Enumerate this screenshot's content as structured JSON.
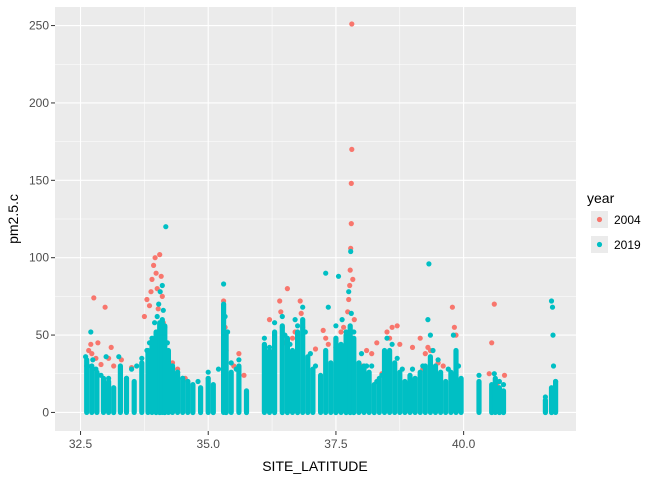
{
  "chart_data": {
    "type": "scatter",
    "title": "",
    "xlabel": "SITE_LATITUDE",
    "ylabel": "pm2.5.c",
    "xlim": [
      32.0,
      42.2
    ],
    "ylim": [
      -12,
      262
    ],
    "x_ticks": [
      32.5,
      35.0,
      37.5,
      40.0
    ],
    "x_tick_labels": [
      "32.5",
      "35.0",
      "37.5",
      "40.0"
    ],
    "y_ticks": [
      0,
      50,
      100,
      150,
      200,
      250
    ],
    "y_tick_labels": [
      "0",
      "50",
      "100",
      "150",
      "200",
      "250"
    ],
    "grid": true,
    "panel_background": "#ebebeb",
    "legend": {
      "title": "year",
      "position": "right"
    },
    "series": [
      {
        "name": "2004",
        "color": "#F8766D",
        "points": [
          [
            32.62,
            30
          ],
          [
            32.66,
            40
          ],
          [
            32.7,
            44
          ],
          [
            32.72,
            38
          ],
          [
            32.76,
            74
          ],
          [
            32.8,
            35
          ],
          [
            32.84,
            45
          ],
          [
            32.9,
            31
          ],
          [
            32.98,
            68
          ],
          [
            33.05,
            35
          ],
          [
            33.1,
            42
          ],
          [
            33.15,
            30
          ],
          [
            33.3,
            34
          ],
          [
            33.5,
            29
          ],
          [
            33.75,
            62
          ],
          [
            33.8,
            73
          ],
          [
            33.85,
            69
          ],
          [
            33.88,
            78
          ],
          [
            33.9,
            86
          ],
          [
            33.93,
            95
          ],
          [
            33.96,
            100
          ],
          [
            33.98,
            90
          ],
          [
            34.0,
            80
          ],
          [
            34.02,
            67
          ],
          [
            34.05,
            102
          ],
          [
            34.08,
            88
          ],
          [
            34.1,
            75
          ],
          [
            34.12,
            58
          ],
          [
            34.15,
            45
          ],
          [
            34.2,
            39
          ],
          [
            34.3,
            32
          ],
          [
            34.4,
            28
          ],
          [
            34.55,
            22
          ],
          [
            35.0,
            22
          ],
          [
            35.3,
            72
          ],
          [
            35.33,
            55
          ],
          [
            35.35,
            40
          ],
          [
            35.5,
            30
          ],
          [
            35.6,
            38
          ],
          [
            35.7,
            24
          ],
          [
            36.2,
            60
          ],
          [
            36.4,
            72
          ],
          [
            36.42,
            65
          ],
          [
            36.45,
            55
          ],
          [
            36.5,
            45
          ],
          [
            36.55,
            80
          ],
          [
            36.65,
            48
          ],
          [
            36.7,
            52
          ],
          [
            36.8,
            72
          ],
          [
            36.82,
            64
          ],
          [
            36.85,
            55
          ],
          [
            37.1,
            41
          ],
          [
            37.25,
            53
          ],
          [
            37.3,
            48
          ],
          [
            37.35,
            44
          ],
          [
            37.5,
            42
          ],
          [
            37.6,
            52
          ],
          [
            37.65,
            55
          ],
          [
            37.7,
            48
          ],
          [
            37.73,
            65
          ],
          [
            37.75,
            73
          ],
          [
            37.77,
            82
          ],
          [
            37.78,
            92
          ],
          [
            37.79,
            106
          ],
          [
            37.8,
            122
          ],
          [
            37.8,
            148
          ],
          [
            37.81,
            170
          ],
          [
            37.81,
            251
          ],
          [
            37.83,
            86
          ],
          [
            37.86,
            60
          ],
          [
            38.0,
            30
          ],
          [
            38.1,
            40
          ],
          [
            38.2,
            38
          ],
          [
            38.3,
            45
          ],
          [
            38.4,
            25
          ],
          [
            38.5,
            52
          ],
          [
            38.55,
            48
          ],
          [
            38.6,
            55
          ],
          [
            38.7,
            56
          ],
          [
            38.75,
            44
          ],
          [
            39.0,
            42
          ],
          [
            39.15,
            48
          ],
          [
            39.2,
            28
          ],
          [
            39.25,
            38
          ],
          [
            39.3,
            42
          ],
          [
            39.35,
            40
          ],
          [
            39.5,
            32
          ],
          [
            39.6,
            30
          ],
          [
            39.78,
            68
          ],
          [
            39.82,
            55
          ],
          [
            39.85,
            50
          ],
          [
            40.5,
            25
          ],
          [
            40.55,
            45
          ],
          [
            40.6,
            70
          ],
          [
            40.65,
            18
          ],
          [
            40.7,
            10
          ],
          [
            40.8,
            24
          ]
        ]
      },
      {
        "name": "2019",
        "color": "#00BFC4",
        "points": [
          [
            32.6,
            36
          ],
          [
            32.64,
            30
          ],
          [
            32.7,
            52
          ],
          [
            32.74,
            34
          ],
          [
            32.8,
            28
          ],
          [
            32.9,
            24
          ],
          [
            33.0,
            36
          ],
          [
            33.05,
            22
          ],
          [
            33.25,
            36
          ],
          [
            33.4,
            22
          ],
          [
            33.5,
            28
          ],
          [
            33.6,
            30
          ],
          [
            33.7,
            35
          ],
          [
            33.8,
            40
          ],
          [
            33.85,
            45
          ],
          [
            33.9,
            48
          ],
          [
            33.95,
            58
          ],
          [
            34.0,
            62
          ],
          [
            34.03,
            70
          ],
          [
            34.06,
            78
          ],
          [
            34.1,
            82
          ],
          [
            34.12,
            66
          ],
          [
            34.15,
            55
          ],
          [
            34.17,
            120
          ],
          [
            34.2,
            45
          ],
          [
            34.3,
            30
          ],
          [
            34.4,
            26
          ],
          [
            34.5,
            22
          ],
          [
            34.6,
            20
          ],
          [
            34.8,
            20
          ],
          [
            35.0,
            26
          ],
          [
            35.2,
            28
          ],
          [
            35.3,
            83
          ],
          [
            35.33,
            62
          ],
          [
            35.38,
            52
          ],
          [
            35.45,
            32
          ],
          [
            35.55,
            28
          ],
          [
            35.6,
            34
          ],
          [
            36.1,
            48
          ],
          [
            36.2,
            42
          ],
          [
            36.3,
            58
          ],
          [
            36.45,
            62
          ],
          [
            36.5,
            50
          ],
          [
            36.6,
            44
          ],
          [
            36.7,
            60
          ],
          [
            36.75,
            56
          ],
          [
            36.85,
            68
          ],
          [
            36.9,
            52
          ],
          [
            37.0,
            38
          ],
          [
            37.1,
            30
          ],
          [
            37.3,
            90
          ],
          [
            37.35,
            68
          ],
          [
            37.5,
            56
          ],
          [
            37.55,
            88
          ],
          [
            37.62,
            60
          ],
          [
            37.7,
            52
          ],
          [
            37.75,
            78
          ],
          [
            37.79,
            104
          ],
          [
            37.8,
            64
          ],
          [
            37.85,
            52
          ],
          [
            38.0,
            38
          ],
          [
            38.1,
            30
          ],
          [
            38.2,
            30
          ],
          [
            38.3,
            20
          ],
          [
            38.4,
            24
          ],
          [
            38.5,
            48
          ],
          [
            38.6,
            44
          ],
          [
            38.7,
            35
          ],
          [
            38.8,
            28
          ],
          [
            39.0,
            28
          ],
          [
            39.2,
            30
          ],
          [
            39.3,
            60
          ],
          [
            39.32,
            96
          ],
          [
            39.35,
            50
          ],
          [
            39.4,
            40
          ],
          [
            39.5,
            34
          ],
          [
            39.7,
            28
          ],
          [
            39.8,
            50
          ],
          [
            39.9,
            30
          ],
          [
            40.3,
            24
          ],
          [
            40.6,
            25
          ],
          [
            40.7,
            20
          ],
          [
            40.78,
            18
          ],
          [
            41.6,
            10
          ],
          [
            41.72,
            72
          ],
          [
            41.74,
            68
          ],
          [
            41.75,
            50
          ],
          [
            41.76,
            30
          ],
          [
            41.8,
            20
          ]
        ],
        "columns": [
          [
            32.62,
            0,
            34
          ],
          [
            32.72,
            0,
            30
          ],
          [
            32.82,
            0,
            26
          ],
          [
            32.95,
            0,
            22
          ],
          [
            33.05,
            0,
            20
          ],
          [
            33.15,
            0,
            16
          ],
          [
            33.28,
            0,
            30
          ],
          [
            33.4,
            0,
            22
          ],
          [
            33.55,
            0,
            20
          ],
          [
            33.7,
            0,
            32
          ],
          [
            33.82,
            0,
            40
          ],
          [
            33.9,
            0,
            46
          ],
          [
            33.98,
            0,
            52
          ],
          [
            34.05,
            0,
            58
          ],
          [
            34.1,
            0,
            60
          ],
          [
            34.15,
            0,
            56
          ],
          [
            34.22,
            0,
            40
          ],
          [
            34.3,
            0,
            30
          ],
          [
            34.4,
            0,
            26
          ],
          [
            34.5,
            0,
            22
          ],
          [
            34.6,
            0,
            20
          ],
          [
            34.7,
            0,
            18
          ],
          [
            34.85,
            0,
            16
          ],
          [
            35.0,
            0,
            22
          ],
          [
            35.1,
            0,
            18
          ],
          [
            35.3,
            0,
            70
          ],
          [
            35.35,
            0,
            50
          ],
          [
            35.45,
            0,
            26
          ],
          [
            35.6,
            0,
            30
          ],
          [
            35.75,
            0,
            14
          ],
          [
            36.1,
            0,
            44
          ],
          [
            36.2,
            0,
            40
          ],
          [
            36.3,
            0,
            52
          ],
          [
            36.45,
            0,
            56
          ],
          [
            36.55,
            0,
            48
          ],
          [
            36.65,
            0,
            40
          ],
          [
            36.75,
            0,
            52
          ],
          [
            36.85,
            0,
            60
          ],
          [
            36.95,
            0,
            36
          ],
          [
            37.05,
            0,
            28
          ],
          [
            37.2,
            0,
            24
          ],
          [
            37.3,
            0,
            40
          ],
          [
            37.4,
            0,
            32
          ],
          [
            37.5,
            0,
            48
          ],
          [
            37.6,
            0,
            44
          ],
          [
            37.7,
            0,
            50
          ],
          [
            37.78,
            0,
            56
          ],
          [
            37.85,
            0,
            48
          ],
          [
            37.95,
            0,
            32
          ],
          [
            38.05,
            0,
            30
          ],
          [
            38.15,
            0,
            26
          ],
          [
            38.25,
            0,
            18
          ],
          [
            38.35,
            0,
            22
          ],
          [
            38.45,
            0,
            40
          ],
          [
            38.55,
            0,
            40
          ],
          [
            38.65,
            0,
            32
          ],
          [
            38.75,
            0,
            26
          ],
          [
            38.85,
            0,
            20
          ],
          [
            38.95,
            0,
            24
          ],
          [
            39.05,
            0,
            22
          ],
          [
            39.15,
            0,
            26
          ],
          [
            39.25,
            0,
            30
          ],
          [
            39.35,
            0,
            36
          ],
          [
            39.45,
            0,
            30
          ],
          [
            39.55,
            0,
            26
          ],
          [
            39.65,
            0,
            20
          ],
          [
            39.75,
            0,
            26
          ],
          [
            39.85,
            0,
            40
          ],
          [
            39.95,
            0,
            22
          ],
          [
            40.3,
            0,
            20
          ],
          [
            40.55,
            0,
            18
          ],
          [
            40.62,
            0,
            22
          ],
          [
            40.7,
            0,
            16
          ],
          [
            40.78,
            0,
            14
          ],
          [
            41.6,
            0,
            8
          ],
          [
            41.72,
            0,
            16
          ],
          [
            41.8,
            0,
            20
          ]
        ]
      }
    ]
  }
}
